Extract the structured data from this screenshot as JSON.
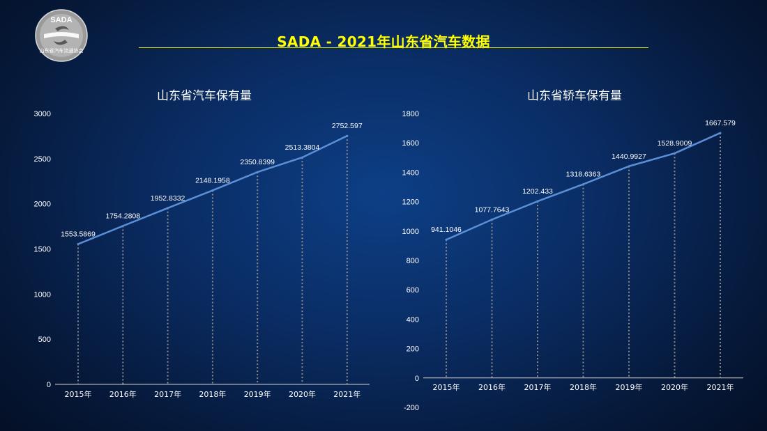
{
  "header": {
    "title": "SADA -  2021年山东省汽车数据",
    "accent_color": "#ffff00"
  },
  "logo": {
    "icon": "sada-logo-icon",
    "text_top": "SADA",
    "text_bottom": "山东省汽车流通协会"
  },
  "chart_data": [
    {
      "type": "line",
      "title": "山东省汽车保有量",
      "categories": [
        "2015年",
        "2016年",
        "2017年",
        "2018年",
        "2019年",
        "2020年",
        "2021年"
      ],
      "values": [
        1553.5869,
        1754.2808,
        1952.8332,
        2148.1958,
        2350.8399,
        2513.3804,
        2752.597
      ],
      "data_labels": [
        "1553.5869",
        "1754.2808",
        "1952.8332",
        "2148.1958",
        "2350.8399",
        "2513.3804",
        "2752.597"
      ],
      "ylim": [
        0,
        3000
      ],
      "yticks": [
        "0",
        "500",
        "1000",
        "1500",
        "2000",
        "2500",
        "3000"
      ],
      "grid": false,
      "drop_lines": true,
      "line_color": "#5b8fd6"
    },
    {
      "type": "line",
      "title": "山东省轿车保有量",
      "categories": [
        "2015年",
        "2016年",
        "2017年",
        "2018年",
        "2019年",
        "2020年",
        "2021年"
      ],
      "values": [
        941.1046,
        1077.7643,
        1202.433,
        1318.6363,
        1440.9927,
        1528.9009,
        1667.579
      ],
      "data_labels": [
        "941.1046",
        "1077.7643",
        "1202.433",
        "1318.6363",
        "1440.9927",
        "1528.9009",
        "1667.579"
      ],
      "ylim": [
        -200,
        1800
      ],
      "yticks": [
        "-200",
        "0",
        "200",
        "400",
        "600",
        "800",
        "1000",
        "1200",
        "1400",
        "1600",
        "1800"
      ],
      "grid": false,
      "drop_lines": true,
      "line_color": "#5b8fd6"
    }
  ]
}
